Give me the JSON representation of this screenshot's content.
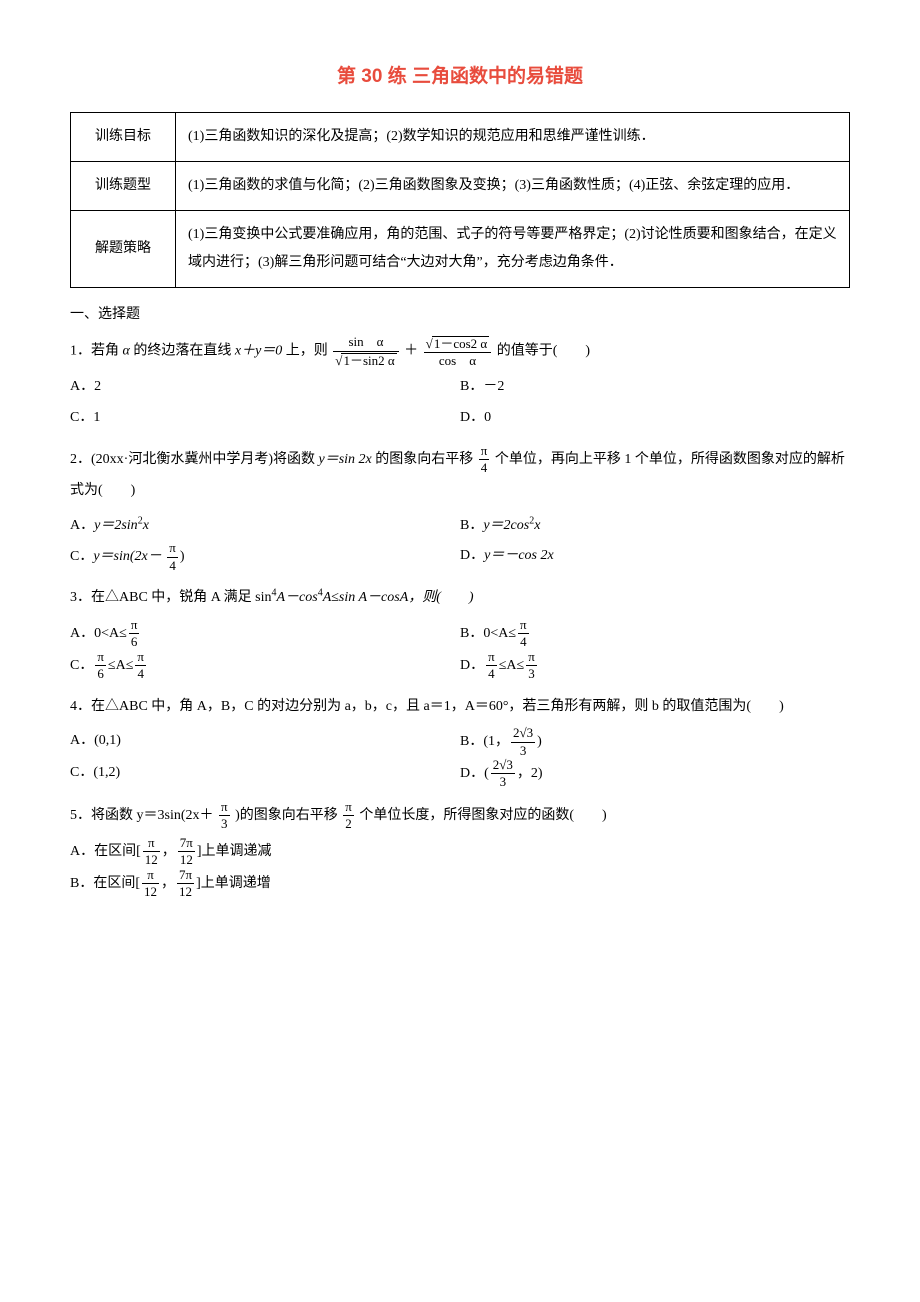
{
  "title": "第 30 练 三角函数中的易错题",
  "table": {
    "rows": [
      {
        "label": "训练目标",
        "content": "(1)三角函数知识的深化及提高；(2)数学知识的规范应用和思维严谨性训练．"
      },
      {
        "label": "训练题型",
        "content": "(1)三角函数的求值与化简；(2)三角函数图象及变换；(3)三角函数性质；(4)正弦、余弦定理的应用．"
      },
      {
        "label": "解题策略",
        "content": "(1)三角变换中公式要准确应用，角的范围、式子的符号等要严格界定；(2)讨论性质要和图象结合，在定义域内进行；(3)解三角形问题可结合“大边对大角”，充分考虑边角条件．"
      }
    ]
  },
  "section1": "一、选择题",
  "q1": {
    "stem_pre": "1．若角 ",
    "alpha": "α",
    "stem_mid1": " 的终边落在直线 ",
    "eq1": "x＋y＝0",
    "stem_mid2": " 上，则",
    "frac1_num": "sin　α",
    "frac1_den_rad": "1－sin2 α",
    "plus": "＋",
    "frac2_num_rad": "1－cos2 α",
    "frac2_den": "cos　α",
    "stem_post": "的值等于(　　)",
    "optA": "A．2",
    "optB": "B．－2",
    "optC": "C．1",
    "optD": "D．0"
  },
  "q2": {
    "stem1": "2．(20xx·河北衡水冀州中学月考)将函数 ",
    "fn": "y＝sin 2x",
    "stem2": " 的图象向右平移",
    "shift_num": "π",
    "shift_den": "4",
    "stem3": "个单位，再向上平移 1 个单位，所得函数图象对应的解析式为(　　)",
    "optA_pre": "A．",
    "optA_fn": "y＝2sin",
    "optA_sup": "2",
    "optA_x": "x",
    "optB_pre": "B．",
    "optB_fn": "y＝2cos",
    "optB_sup": "2",
    "optB_x": "x",
    "optC_pre": "C．",
    "optC_fn": "y＝sin(2x－",
    "optC_num": "π",
    "optC_den": "4",
    "optC_post": ")",
    "optD_pre": "D．",
    "optD_fn": "y＝－cos 2x"
  },
  "q3": {
    "stem1": "3．在△ABC 中，锐角 A 满足 sin",
    "sup4a": "4",
    "stemA1": "A－cos",
    "sup4b": "4",
    "stemA2": "A≤sin A－cosA，则(　　)",
    "optA_pre": "A．0<A≤",
    "optA_num": "π",
    "optA_den": "6",
    "optB_pre": "B．0<A≤",
    "optB_num": "π",
    "optB_den": "4",
    "optC_f1n": "π",
    "optC_f1d": "6",
    "optC_mid": "≤A≤",
    "optC_f2n": "π",
    "optC_f2d": "4",
    "optC_pre": "C．",
    "optD_pre": "D．",
    "optD_f1n": "π",
    "optD_f1d": "4",
    "optD_mid": "≤A≤",
    "optD_f2n": "π",
    "optD_f2d": "3"
  },
  "q4": {
    "stem": "4．在△ABC 中，角 A，B，C 的对边分别为 a，b，c，且 a＝1，A＝60°，若三角形有两解，则 b 的取值范围为(　　)",
    "optA": "A．(0,1)",
    "optB_pre": "B．(1，",
    "optB_num": "2√3",
    "optB_den": "3",
    "optB_post": ")",
    "optC": "C．(1,2)",
    "optD_pre": "D．(",
    "optD_num": "2√3",
    "optD_den": "3",
    "optD_post": "，2)"
  },
  "q5": {
    "stem1": "5．将函数 y＝3sin(2x＋",
    "f1n": "π",
    "f1d": "3",
    "stem2": ")的图象向右平移",
    "f2n": "π",
    "f2d": "2",
    "stem3": "个单位长度，所得图象对应的函数(　　)",
    "optA_pre": "A．在区间[",
    "optA_f1n": "π",
    "optA_f1d": "12",
    "optA_mid": "，",
    "optA_f2n": "7π",
    "optA_f2d": "12",
    "optA_post": "]上单调递减",
    "optB_pre": "B．在区间[",
    "optB_f1n": "π",
    "optB_f1d": "12",
    "optB_mid": "，",
    "optB_f2n": "7π",
    "optB_f2d": "12",
    "optB_post": "]上单调递增"
  }
}
